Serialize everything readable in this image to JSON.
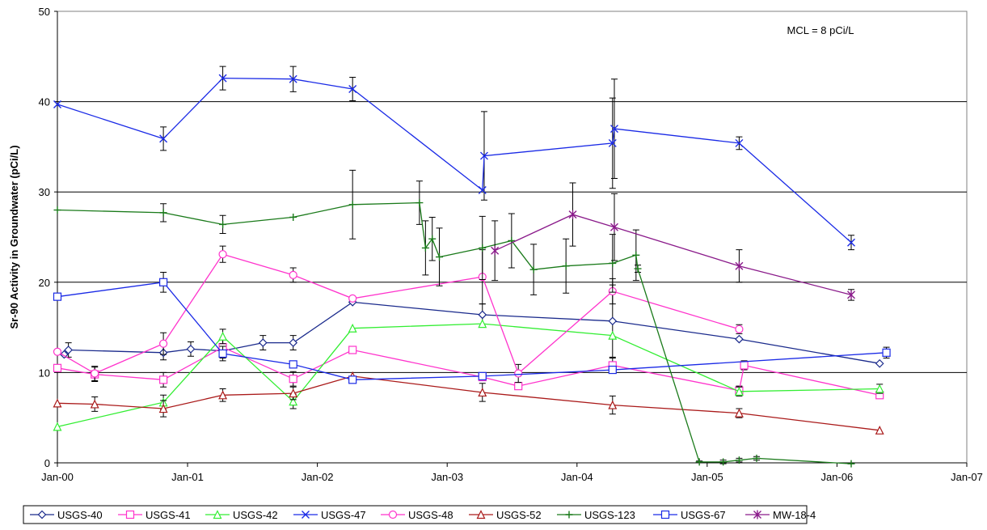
{
  "chart_data": {
    "type": "line",
    "title": "",
    "xlabel": "",
    "ylabel": "Sr-90 Activity in Groundwater (pCi/L)",
    "annotation": "MCL = 8 pCi/L",
    "xlim": [
      "2000-01-01",
      "2007-01-01"
    ],
    "ylim": [
      0,
      50
    ],
    "x_ticks": [
      "Jan-00",
      "Jan-01",
      "Jan-02",
      "Jan-03",
      "Jan-04",
      "Jan-05",
      "Jan-06",
      "Jan-07"
    ],
    "y_ticks": [
      0,
      10,
      20,
      30,
      40,
      50
    ],
    "grid": "horizontal",
    "legend": "bottom",
    "series": [
      {
        "name": "USGS-40",
        "color": "#1a2a8c",
        "marker": "diamond",
        "points": [
          [
            "2000-01-20",
            12.0
          ],
          [
            "2000-02-01",
            12.5
          ],
          [
            "2000-10-25",
            12.2
          ],
          [
            "2001-01-10",
            12.6
          ],
          [
            "2001-04-10",
            12.4
          ],
          [
            "2001-08-01",
            13.3
          ],
          [
            "2001-10-25",
            13.3
          ],
          [
            "2002-04-10",
            17.8
          ],
          [
            "2003-04-10",
            16.4
          ],
          [
            "2004-04-10",
            15.7
          ],
          [
            "2005-04-01",
            13.7
          ],
          [
            "2006-05-01",
            11.0
          ]
        ],
        "errors": [
          0,
          0.8,
          0.8,
          0.8,
          0.8,
          0.8,
          0.8,
          0,
          1.2,
          4.0,
          0,
          0
        ]
      },
      {
        "name": "USGS-41",
        "color": "#ff33cc",
        "marker": "square",
        "points": [
          [
            "2000-01-01",
            10.5
          ],
          [
            "2000-04-15",
            9.8
          ],
          [
            "2000-10-25",
            9.2
          ],
          [
            "2001-04-10",
            12.8
          ],
          [
            "2001-10-25",
            9.3
          ],
          [
            "2002-04-10",
            12.5
          ],
          [
            "2003-04-10",
            9.5
          ],
          [
            "2003-07-20",
            8.5
          ],
          [
            "2004-04-10",
            10.8
          ],
          [
            "2005-04-01",
            8.0
          ],
          [
            "2005-04-15",
            10.8
          ],
          [
            "2006-05-01",
            7.5
          ]
        ],
        "errors": [
          0,
          0.8,
          0.8,
          1.0,
          0.8,
          0,
          0,
          0,
          0.8,
          0.5,
          0.5,
          0
        ]
      },
      {
        "name": "USGS-42",
        "color": "#33ee33",
        "marker": "triangle",
        "points": [
          [
            "2000-01-01",
            4.0
          ],
          [
            "2000-10-25",
            6.7
          ],
          [
            "2001-04-10",
            14.0
          ],
          [
            "2001-10-25",
            6.8
          ],
          [
            "2002-04-10",
            14.9
          ],
          [
            "2003-04-10",
            15.4
          ],
          [
            "2004-04-10",
            14.1
          ],
          [
            "2005-04-01",
            7.9
          ],
          [
            "2006-05-01",
            8.2
          ]
        ],
        "errors": [
          0,
          0.8,
          0.8,
          0.8,
          0,
          0,
          0,
          0.5,
          0.5
        ]
      },
      {
        "name": "USGS-47",
        "color": "#1a2ae6",
        "marker": "x",
        "points": [
          [
            "2000-01-01",
            39.7
          ],
          [
            "2000-10-25",
            35.9
          ],
          [
            "2001-04-10",
            42.6
          ],
          [
            "2001-10-25",
            42.5
          ],
          [
            "2002-04-10",
            41.4
          ],
          [
            "2003-04-10",
            30.2
          ],
          [
            "2003-04-15",
            34.0
          ],
          [
            "2004-04-10",
            35.4
          ],
          [
            "2004-04-15",
            37.0
          ],
          [
            "2005-04-01",
            35.4
          ],
          [
            "2006-02-10",
            24.4
          ]
        ],
        "errors": [
          0,
          1.3,
          1.3,
          1.4,
          1.3,
          0,
          4.9,
          5.0,
          5.5,
          0.7,
          0.8
        ]
      },
      {
        "name": "USGS-48",
        "color": "#ff33cc",
        "marker": "circle",
        "points": [
          [
            "2000-01-01",
            12.3
          ],
          [
            "2000-04-15",
            9.9
          ],
          [
            "2000-10-25",
            13.2
          ],
          [
            "2001-04-10",
            23.1
          ],
          [
            "2001-10-25",
            20.8
          ],
          [
            "2002-04-10",
            18.2
          ],
          [
            "2003-04-10",
            20.6
          ],
          [
            "2003-07-20",
            9.9
          ],
          [
            "2004-04-10",
            19.0
          ],
          [
            "2005-04-01",
            14.8
          ]
        ],
        "errors": [
          0,
          0.8,
          1.2,
          0.9,
          0.8,
          0,
          3.0,
          1.0,
          1.4,
          0.5
        ]
      },
      {
        "name": "USGS-52",
        "color": "#aa1a1a",
        "marker": "triangle-open",
        "points": [
          [
            "2000-01-01",
            6.6
          ],
          [
            "2000-04-15",
            6.5
          ],
          [
            "2000-10-25",
            6.0
          ],
          [
            "2001-04-10",
            7.5
          ],
          [
            "2001-10-25",
            7.7
          ],
          [
            "2002-04-10",
            9.6
          ],
          [
            "2003-04-10",
            7.8
          ],
          [
            "2004-04-10",
            6.4
          ],
          [
            "2005-04-01",
            5.5
          ],
          [
            "2006-05-01",
            3.6
          ]
        ],
        "errors": [
          0,
          0.8,
          0.9,
          0.7,
          0.7,
          0,
          1.0,
          1.0,
          0.5,
          0
        ]
      },
      {
        "name": "USGS-123",
        "color": "#1a7a1a",
        "marker": "plus",
        "points": [
          [
            "2000-01-01",
            28.0
          ],
          [
            "2000-10-25",
            27.7
          ],
          [
            "2001-04-10",
            26.4
          ],
          [
            "2001-10-25",
            27.2
          ],
          [
            "2002-04-10",
            28.6
          ],
          [
            "2002-10-15",
            28.8
          ],
          [
            "2002-11-01",
            23.8
          ],
          [
            "2002-11-20",
            24.8
          ],
          [
            "2002-12-10",
            22.8
          ],
          [
            "2003-04-10",
            23.8
          ],
          [
            "2003-07-01",
            24.6
          ],
          [
            "2003-09-01",
            21.4
          ],
          [
            "2003-12-01",
            21.8
          ],
          [
            "2004-04-10",
            22.1
          ],
          [
            "2004-06-15",
            23.0
          ],
          [
            "2004-06-20",
            21.5
          ],
          [
            "2004-12-10",
            0.1
          ],
          [
            "2005-02-15",
            0.1
          ],
          [
            "2005-04-01",
            0.3
          ],
          [
            "2005-05-20",
            0.5
          ],
          [
            "2006-02-10",
            -0.1
          ]
        ],
        "errors": [
          0,
          1.0,
          1.0,
          0,
          3.8,
          2.4,
          3.0,
          2.4,
          3.2,
          3.5,
          3.0,
          2.8,
          3.0,
          3.2,
          2.8,
          0.4,
          0.1,
          0.2,
          0.2,
          0.2,
          0
        ]
      },
      {
        "name": "USGS-67",
        "color": "#1a2ae6",
        "marker": "square",
        "points": [
          [
            "2000-01-01",
            18.4
          ],
          [
            "2000-10-25",
            20.0
          ],
          [
            "2001-04-10",
            12.1
          ],
          [
            "2001-10-25",
            10.9
          ],
          [
            "2002-04-10",
            9.2
          ],
          [
            "2003-04-10",
            9.6
          ],
          [
            "2004-04-10",
            10.3
          ],
          [
            "2006-05-20",
            12.2
          ]
        ],
        "errors": [
          0,
          1.1,
          0.8,
          0,
          0,
          0,
          0,
          0.6
        ]
      },
      {
        "name": "MW-18-4",
        "color": "#8a1a8a",
        "marker": "star",
        "points": [
          [
            "2003-05-15",
            23.5
          ],
          [
            "2003-12-20",
            27.5
          ],
          [
            "2004-04-15",
            26.1
          ],
          [
            "2005-04-01",
            21.8
          ],
          [
            "2006-02-10",
            18.6
          ]
        ],
        "errors": [
          3.3,
          3.5,
          3.7,
          1.8,
          0.6
        ]
      }
    ]
  }
}
